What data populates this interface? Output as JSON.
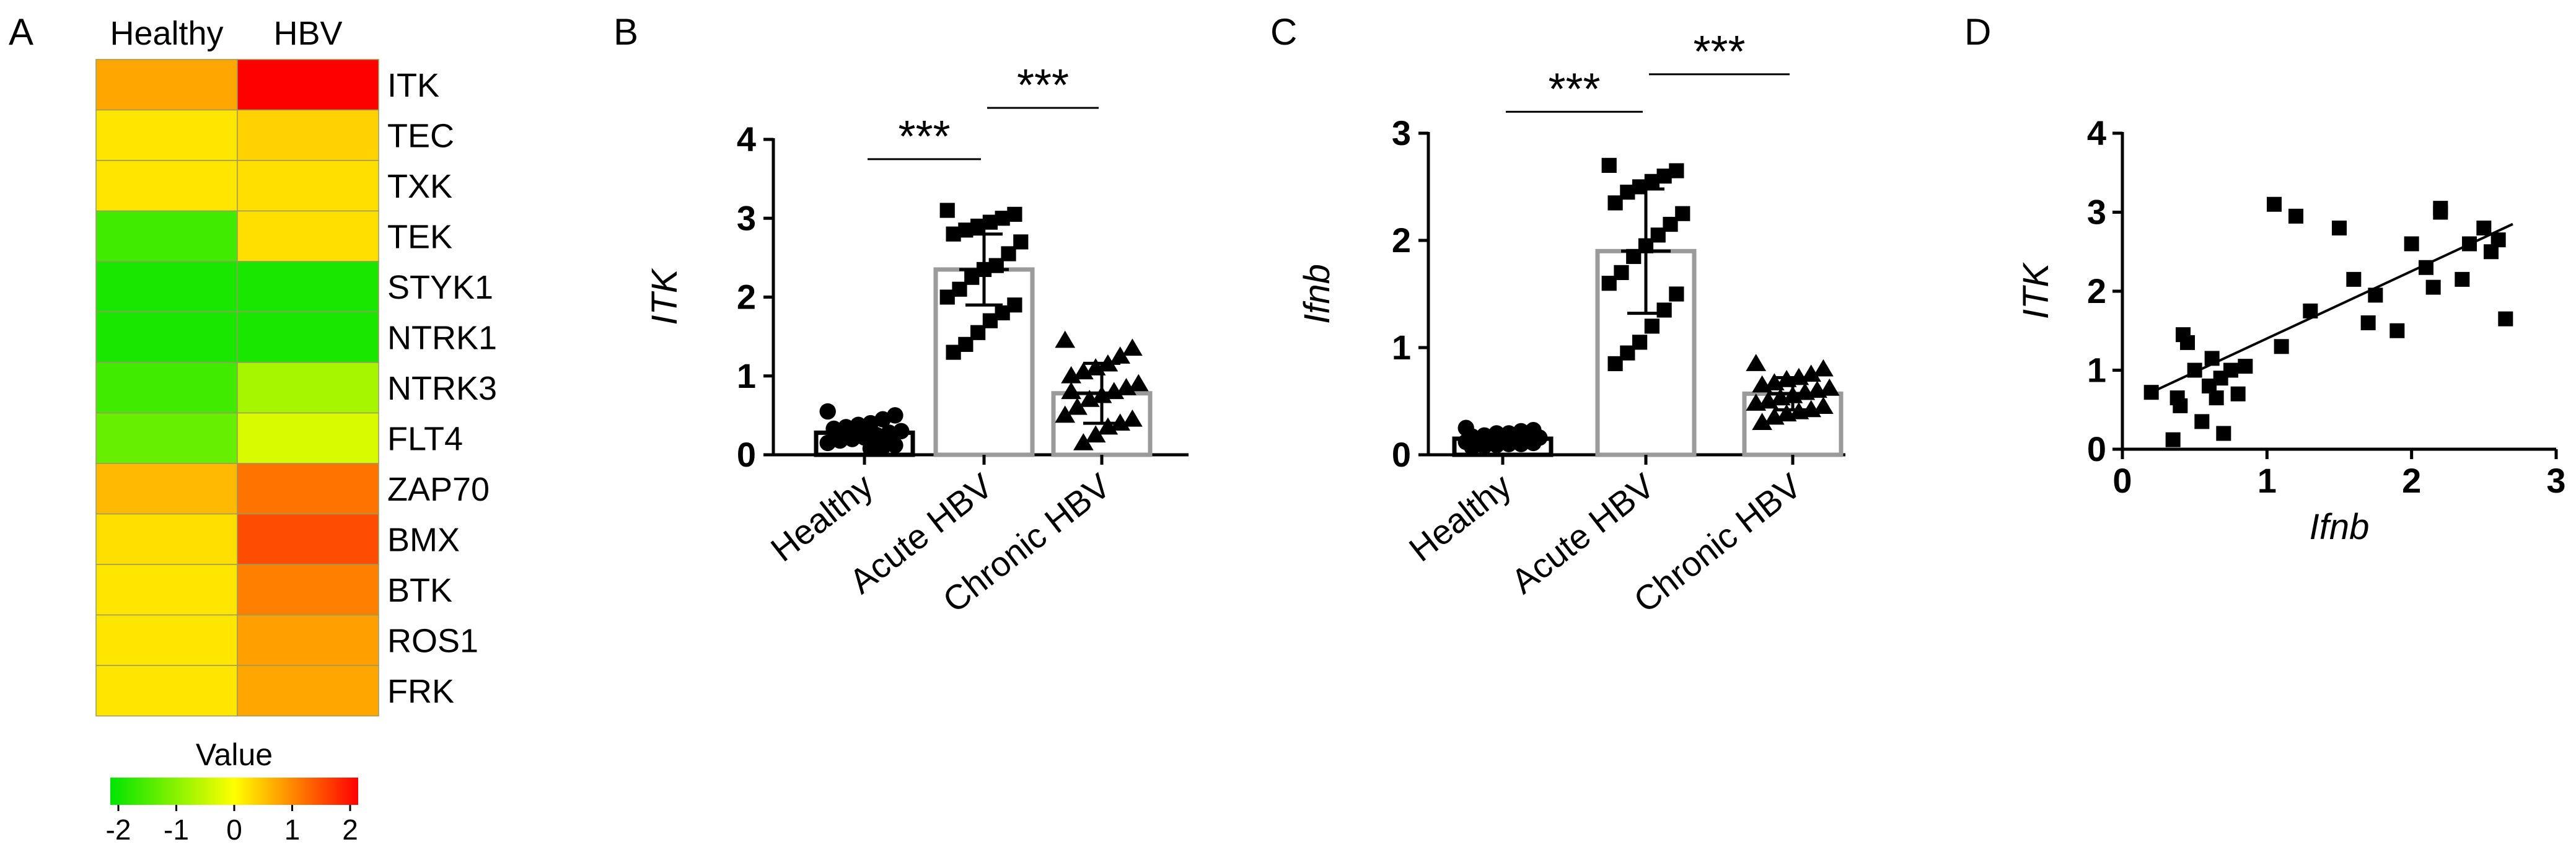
{
  "chart_data": [
    {
      "panel": "A",
      "type": "heatmap",
      "title": "",
      "columns": [
        "Healthy",
        "HBV"
      ],
      "rows": [
        "ITK",
        "TEC",
        "TXK",
        "TEK",
        "STYK1",
        "NTRK1",
        "NTRK3",
        "FLT4",
        "ZAP70",
        "BMX",
        "BTK",
        "ROS1",
        "FRK"
      ],
      "values": [
        [
          0.7,
          2.0
        ],
        [
          0.2,
          0.35
        ],
        [
          0.2,
          0.25
        ],
        [
          -1.5,
          0.25
        ],
        [
          -1.8,
          -1.8
        ],
        [
          -1.8,
          -1.8
        ],
        [
          -1.5,
          -0.7
        ],
        [
          -1.2,
          -0.3
        ],
        [
          0.55,
          1.1
        ],
        [
          0.25,
          1.4
        ],
        [
          0.2,
          1.0
        ],
        [
          0.2,
          0.75
        ],
        [
          0.2,
          0.7
        ]
      ],
      "legend": {
        "title": "Value",
        "ticks": [
          "-2",
          "-1",
          "0",
          "1",
          "2"
        ],
        "range": [
          -2,
          2
        ]
      },
      "colors": [
        "#00e400",
        "#ffff00",
        "#ff0000"
      ]
    },
    {
      "panel": "B",
      "type": "bar",
      "ylabel": "ITK",
      "xlabel": "",
      "ylim": [
        0,
        4
      ],
      "yticks": [
        "0",
        "1",
        "2",
        "3",
        "4"
      ],
      "categories": [
        "Healthy",
        "Acute HBV",
        "Chronic HBV"
      ],
      "means": [
        0.28,
        2.35,
        0.78
      ],
      "sd": [
        0.12,
        0.45,
        0.38
      ],
      "markers": [
        "circle",
        "square",
        "triangle"
      ],
      "points": [
        [
          0.55,
          0.5,
          0.45,
          0.4,
          0.38,
          0.35,
          0.33,
          0.3,
          0.28,
          0.25,
          0.22,
          0.2,
          0.18,
          0.15,
          0.12,
          0.1,
          0.08,
          0.3,
          0.35,
          0.2
        ],
        [
          3.1,
          3.05,
          3.0,
          2.95,
          2.9,
          2.85,
          2.8,
          2.7,
          2.55,
          2.4,
          2.35,
          2.25,
          2.1,
          2.0,
          1.9,
          1.8,
          1.7,
          1.55,
          1.4,
          1.3
        ],
        [
          1.45,
          1.35,
          1.25,
          1.15,
          1.1,
          1.05,
          1.0,
          0.9,
          0.85,
          0.8,
          0.75,
          0.7,
          0.6,
          0.5,
          0.45,
          0.4,
          0.35,
          0.25,
          0.15,
          0.8
        ]
      ],
      "significance": [
        {
          "from": 0,
          "to": 1,
          "label": "***",
          "y": 3.75
        },
        {
          "from": 1,
          "to": 2,
          "label": "***",
          "y": 4.4
        }
      ]
    },
    {
      "panel": "C",
      "type": "bar",
      "ylabel": "Ifnb",
      "xlabel": "",
      "ylim": [
        0,
        3
      ],
      "yticks": [
        "0",
        "1",
        "2",
        "3"
      ],
      "categories": [
        "Healthy",
        "Acute HBV",
        "Chronic HBV"
      ],
      "means": [
        0.15,
        1.9,
        0.57
      ],
      "sd": [
        0.06,
        0.58,
        0.15
      ],
      "markers": [
        "circle",
        "square",
        "triangle"
      ],
      "points": [
        [
          0.25,
          0.23,
          0.22,
          0.2,
          0.2,
          0.18,
          0.17,
          0.16,
          0.15,
          0.15,
          0.14,
          0.13,
          0.12,
          0.12,
          0.11,
          0.1,
          0.1,
          0.09,
          0.08,
          0.07
        ],
        [
          2.7,
          2.65,
          2.6,
          2.55,
          2.5,
          2.45,
          2.35,
          2.25,
          2.15,
          2.05,
          1.95,
          1.85,
          1.7,
          1.6,
          1.5,
          1.35,
          1.2,
          1.05,
          0.95,
          0.85
        ],
        [
          0.85,
          0.8,
          0.75,
          0.72,
          0.7,
          0.67,
          0.65,
          0.62,
          0.6,
          0.58,
          0.55,
          0.53,
          0.5,
          0.48,
          0.45,
          0.42,
          0.4,
          0.38,
          0.35,
          0.3
        ]
      ],
      "significance": [
        {
          "from": 0,
          "to": 1,
          "label": "***",
          "y": 3.2
        },
        {
          "from": 1,
          "to": 2,
          "label": "***",
          "y": 3.55
        }
      ]
    },
    {
      "panel": "D",
      "type": "scatter",
      "xlabel": "Ifnb",
      "ylabel": "ITK",
      "xlim": [
        0,
        3
      ],
      "ylim": [
        0,
        4
      ],
      "xticks": [
        "0",
        "1",
        "2",
        "3"
      ],
      "yticks": [
        "0",
        "1",
        "2",
        "3",
        "4"
      ],
      "x": [
        0.2,
        0.35,
        0.38,
        0.4,
        0.42,
        0.45,
        0.5,
        0.55,
        0.6,
        0.62,
        0.65,
        0.68,
        0.7,
        0.75,
        0.8,
        0.85,
        1.05,
        1.1,
        1.2,
        1.3,
        1.5,
        1.6,
        1.7,
        1.75,
        1.9,
        2.0,
        2.1,
        2.15,
        2.2,
        2.2,
        2.35,
        2.4,
        2.5,
        2.55,
        2.6,
        2.65
      ],
      "y": [
        0.72,
        0.12,
        0.65,
        0.55,
        1.45,
        1.35,
        1.0,
        0.35,
        0.8,
        1.15,
        0.65,
        0.9,
        0.2,
        1.0,
        0.7,
        1.05,
        3.1,
        1.3,
        2.95,
        1.75,
        2.8,
        2.15,
        1.6,
        1.95,
        1.5,
        2.6,
        2.3,
        2.05,
        3.05,
        3.0,
        2.15,
        2.6,
        2.8,
        2.5,
        2.65,
        1.65
      ],
      "fit": {
        "x1": 0.2,
        "y1": 0.72,
        "x2": 2.7,
        "y2": 2.85
      }
    }
  ],
  "panel_labels": [
    "A",
    "B",
    "C",
    "D"
  ]
}
